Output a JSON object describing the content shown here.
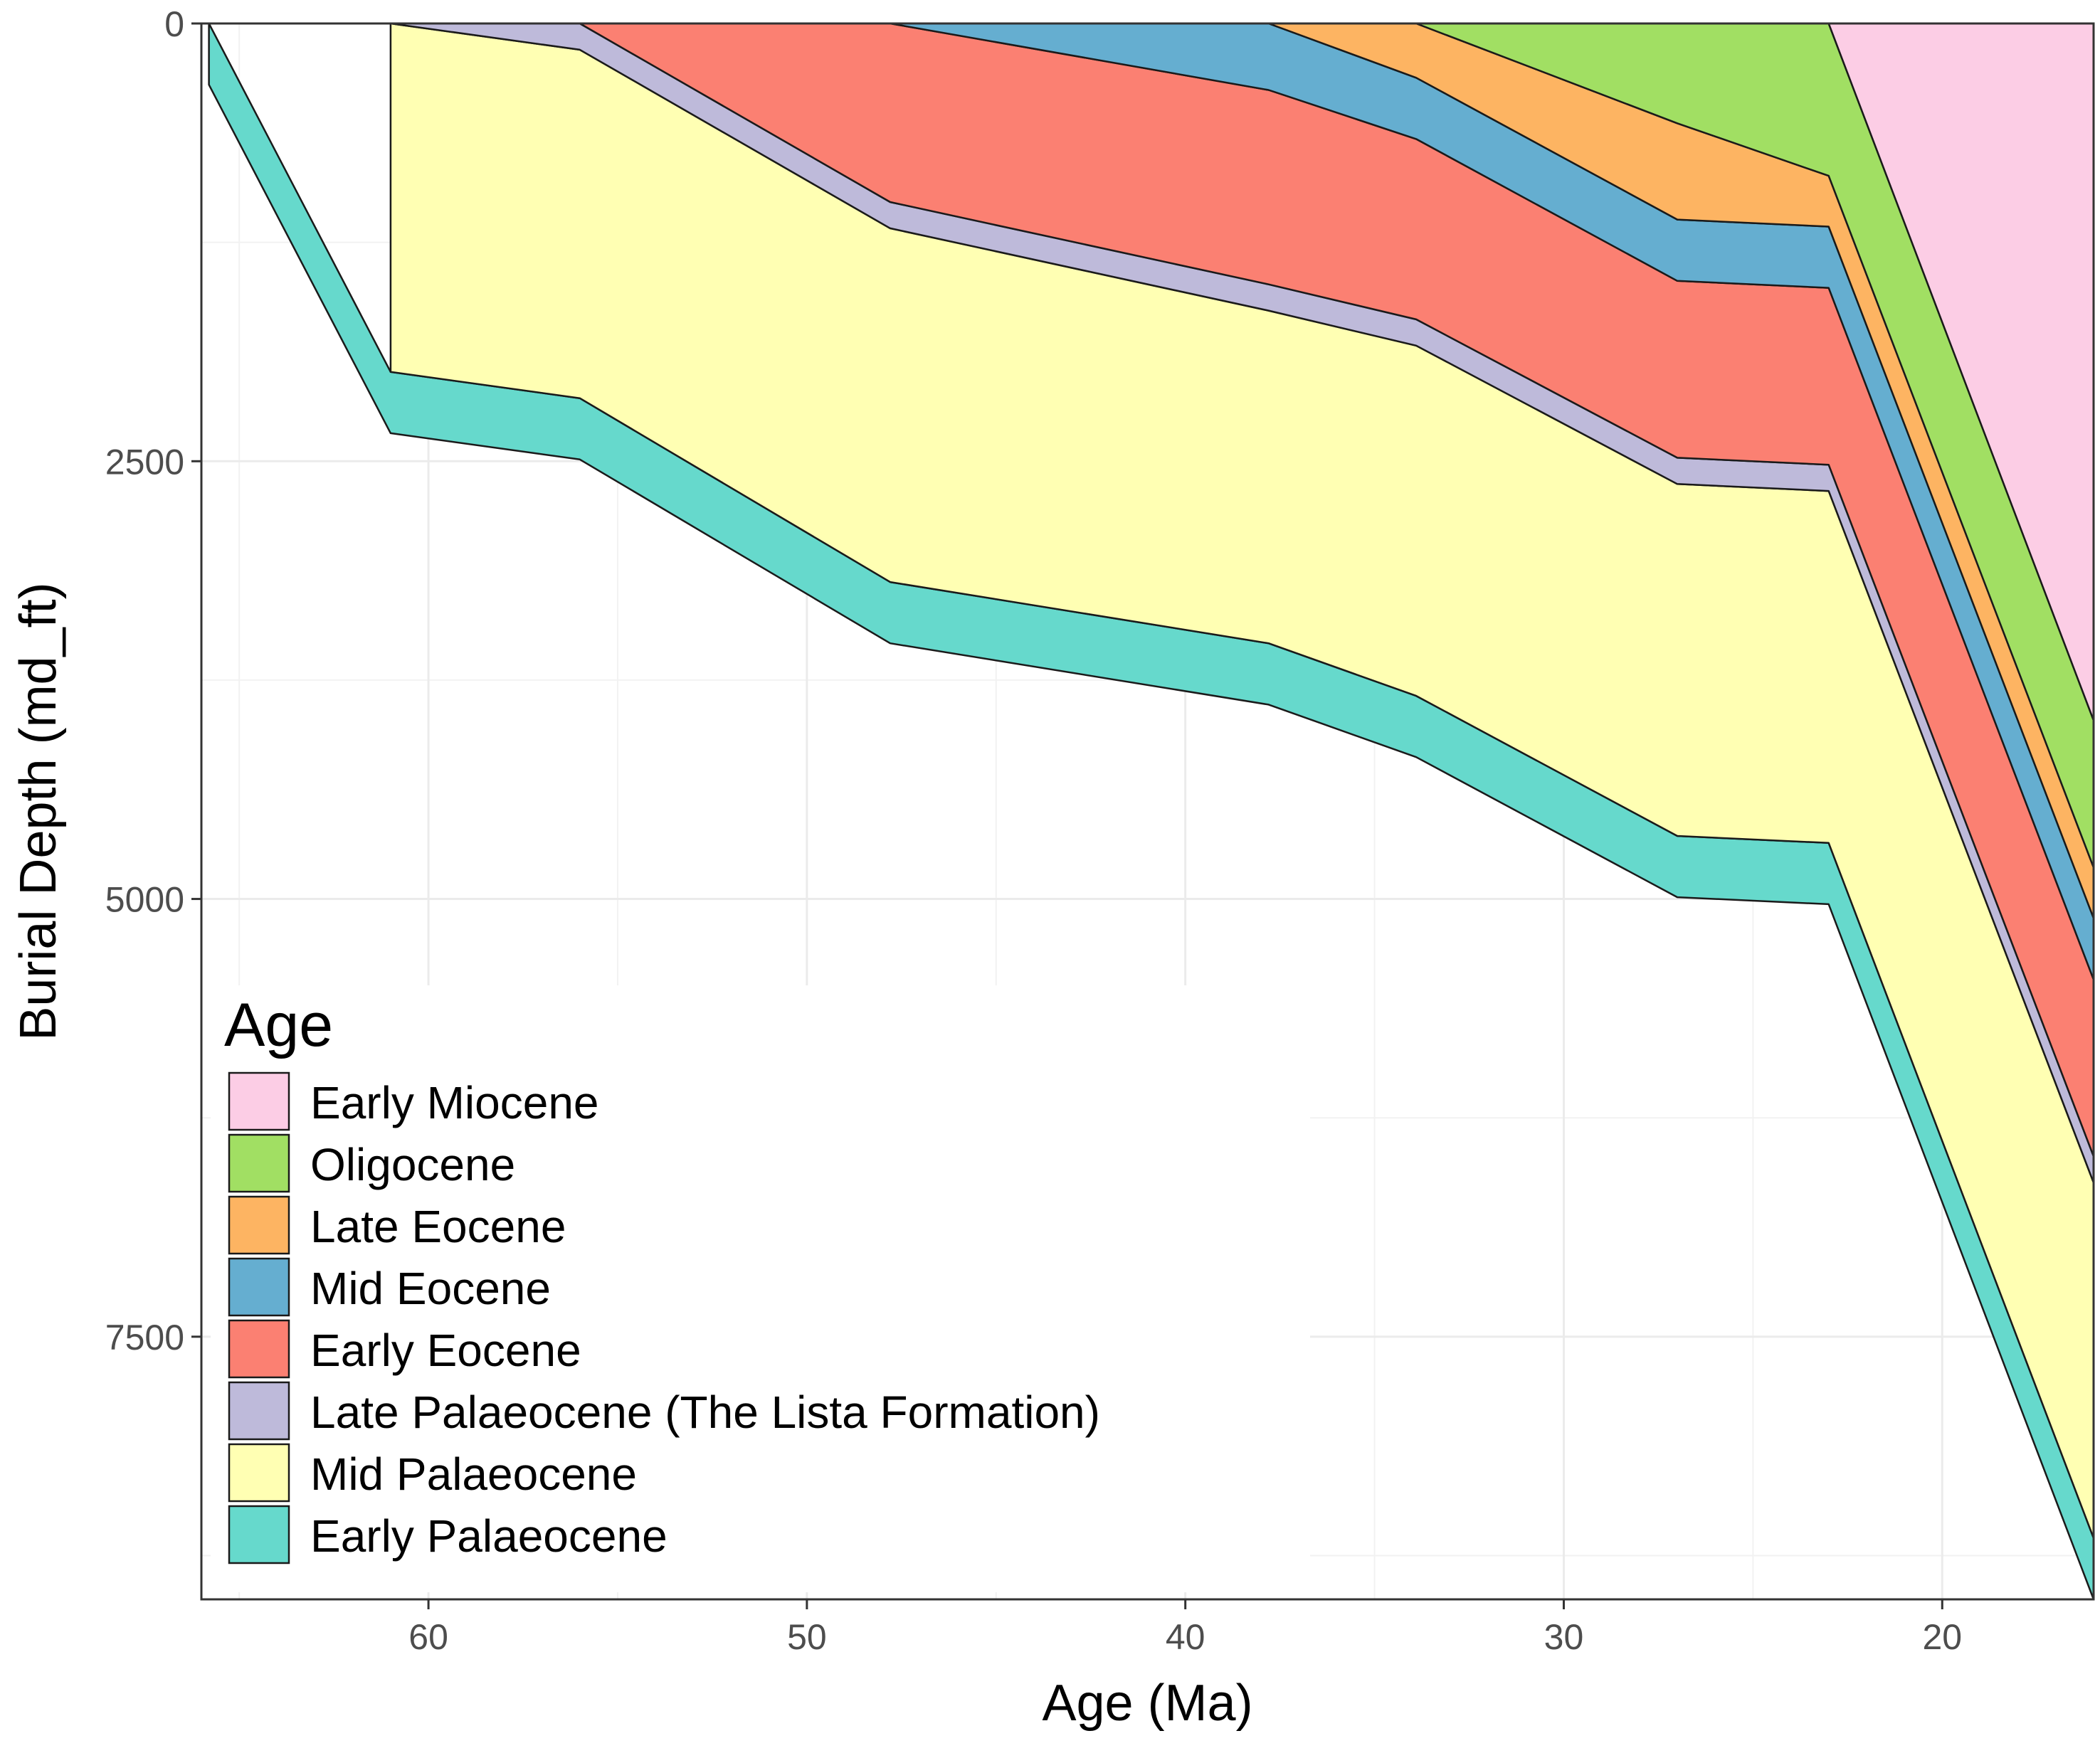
{
  "chart_data": {
    "type": "area",
    "title": "",
    "xlabel": "Age (Ma)",
    "ylabel": "Burial Depth (md_ft)",
    "xlim": [
      66,
      16
    ],
    "ylim": [
      0,
      9000
    ],
    "x_reversed": true,
    "y_reversed": true,
    "grid": true,
    "x_ticks": [
      60,
      50,
      40,
      30,
      20
    ],
    "y_ticks": [
      0,
      2500,
      5000,
      7500
    ],
    "legend": {
      "title": "Age",
      "position": "bottom-left-inside",
      "entries": [
        "Early Miocene",
        "Oligocene",
        "Late Eocene",
        "Mid Eocene",
        "Early Eocene",
        "Late Palaeocene (The Lista Formation)",
        "Mid Palaeocene",
        "Early Palaeocene"
      ]
    },
    "series": [
      {
        "name": "Early Palaeocene",
        "color": "#66D9CC",
        "x": [
          65.8,
          61,
          56,
          47.8,
          37.8,
          33.9,
          27,
          23,
          16
        ],
        "top": [
          0,
          1990,
          2140,
          3190,
          3540,
          3840,
          4640,
          4680,
          8650
        ],
        "base": [
          350,
          2340,
          2490,
          3540,
          3890,
          4190,
          4990,
          5030,
          9000
        ]
      },
      {
        "name": "Mid Palaeocene",
        "color": "#FFFFB3",
        "x": [
          61,
          56,
          47.8,
          37.8,
          33.9,
          27,
          23,
          16
        ],
        "top": [
          0,
          150,
          1170,
          1640,
          1840,
          2630,
          2670,
          6620
        ],
        "base": [
          1990,
          2140,
          3190,
          3540,
          3840,
          4640,
          4680,
          8650
        ]
      },
      {
        "name": "Late Palaeocene (The Lista Formation)",
        "color": "#BEBADA",
        "x": [
          61,
          56,
          47.8,
          37.8,
          33.9,
          27,
          23,
          16
        ],
        "top": [
          0,
          0,
          1020,
          1490,
          1690,
          2480,
          2520,
          6470
        ],
        "base": [
          0,
          150,
          1170,
          1640,
          1840,
          2630,
          2670,
          6620
        ]
      },
      {
        "name": "Early Eocene",
        "color": "#FB8072",
        "x": [
          56,
          47.8,
          37.8,
          33.9,
          27,
          23,
          16
        ],
        "top": [
          0,
          0,
          380,
          660,
          1470,
          1510,
          5460
        ],
        "base": [
          0,
          1020,
          1490,
          1690,
          2480,
          2520,
          6470
        ]
      },
      {
        "name": "Mid Eocene",
        "color": "#65AED0",
        "x": [
          47.8,
          37.8,
          33.9,
          27,
          23,
          16
        ],
        "top": [
          0,
          0,
          310,
          1120,
          1160,
          5110
        ],
        "base": [
          0,
          380,
          660,
          1470,
          1510,
          5460
        ]
      },
      {
        "name": "Late Eocene",
        "color": "#FDB462",
        "x": [
          37.8,
          33.9,
          27,
          23,
          16
        ],
        "top": [
          0,
          0,
          570,
          870,
          4820
        ],
        "base": [
          0,
          310,
          1120,
          1160,
          5110
        ]
      },
      {
        "name": "Oligocene",
        "color": "#A1DF63",
        "x": [
          33.9,
          27,
          23,
          16
        ],
        "top": [
          0,
          0,
          0,
          3980
        ],
        "base": [
          0,
          570,
          870,
          4820
        ]
      },
      {
        "name": "Early Miocene",
        "color": "#FCCDE5",
        "x": [
          23,
          16
        ],
        "top": [
          0,
          0
        ],
        "base": [
          0,
          3980
        ]
      }
    ]
  }
}
